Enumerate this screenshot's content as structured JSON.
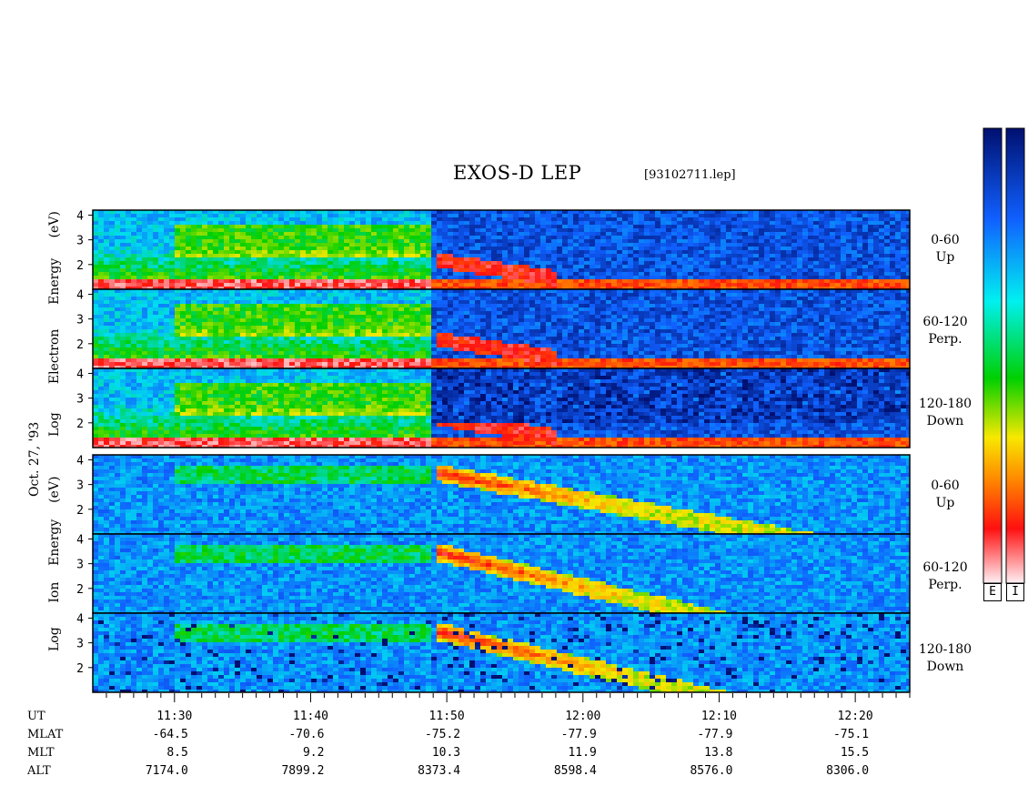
{
  "title": "EXOS-D LEP",
  "filename": "[93102711.lep]",
  "date_label": "Oct. 27, '93",
  "electron_ylabel": [
    "Log",
    "Electron",
    "Energy",
    "(eV)"
  ],
  "ion_ylabel": [
    "Log",
    "Ion",
    "Energy",
    "(eV)"
  ],
  "panels": [
    {
      "species": "Electron",
      "angle": "0-60",
      "dir": "Up"
    },
    {
      "species": "Electron",
      "angle": "60-120",
      "dir": "Perp."
    },
    {
      "species": "Electron",
      "angle": "120-180",
      "dir": "Down"
    },
    {
      "species": "Ion",
      "angle": "0-60",
      "dir": "Up"
    },
    {
      "species": "Ion",
      "angle": "60-120",
      "dir": "Perp."
    },
    {
      "species": "Ion",
      "angle": "120-180",
      "dir": "Down"
    }
  ],
  "colorbar_labels": [
    "E",
    "I"
  ],
  "colors": {
    "scale": [
      "#f4e8ec",
      "#ff2020",
      "#ff8000",
      "#f0e000",
      "#00d000",
      "#00e8e0",
      "#1060ff",
      "#001890"
    ],
    "background_high": "#0a20c0"
  },
  "footer": {
    "row_labels": [
      "UT",
      "MLAT",
      "MLT",
      "ALT"
    ],
    "ut": [
      "11:30",
      "11:40",
      "11:50",
      "12:00",
      "12:10",
      "12:20"
    ],
    "mlat": [
      "-64.5",
      "-70.6",
      "-75.2",
      "-77.9",
      "-77.9",
      "-75.1"
    ],
    "mlt": [
      "8.5",
      "9.2",
      "10.3",
      "11.9",
      "13.8",
      "15.5"
    ],
    "alt": [
      "7174.0",
      "7899.2",
      "8373.4",
      "8598.4",
      "8576.0",
      "8306.0"
    ]
  },
  "chart_data": {
    "type": "heatmap",
    "title": "EXOS-D LEP",
    "xlabel": "UT",
    "ylabel": "Log Energy (eV)",
    "x_range": [
      "11:24",
      "12:24"
    ],
    "x_ticks": [
      "11:30",
      "11:40",
      "11:50",
      "12:00",
      "12:10",
      "12:20"
    ],
    "ylim": [
      1,
      4.2
    ],
    "y_ticks": [
      2,
      3,
      4
    ],
    "panels": [
      {
        "species": "Electron",
        "pitch_angle": "0-60",
        "direction": "Up"
      },
      {
        "species": "Electron",
        "pitch_angle": "60-120",
        "direction": "Perp."
      },
      {
        "species": "Electron",
        "pitch_angle": "120-180",
        "direction": "Down"
      },
      {
        "species": "Ion",
        "pitch_angle": "0-60",
        "direction": "Up"
      },
      {
        "species": "Ion",
        "pitch_angle": "60-120",
        "direction": "Perp."
      },
      {
        "species": "Ion",
        "pitch_angle": "120-180",
        "direction": "Down"
      }
    ]
  }
}
